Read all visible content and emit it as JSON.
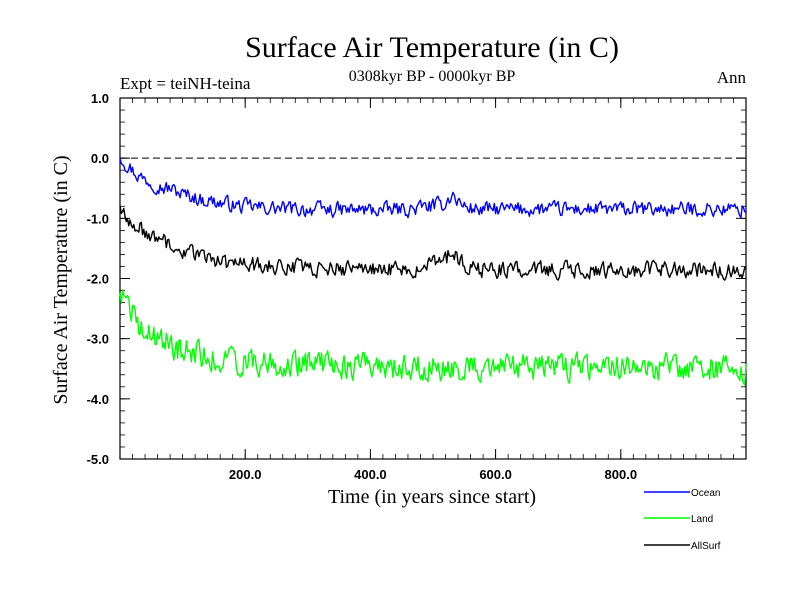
{
  "chart_data": {
    "type": "line",
    "title": "Surface Air Temperature (in C)",
    "subtitle": "0308kyr BP - 0000kyr BP",
    "experiment_label": "Expt = teiNH-teina",
    "season_label": "Ann",
    "xlabel": "Time (in years since start)",
    "ylabel": "Surface Air Temperature (in C)",
    "xlim": [
      0,
      1000
    ],
    "ylim": [
      -5.0,
      1.0
    ],
    "x_ticks": [
      200,
      400,
      600,
      800
    ],
    "x_tick_labels": [
      "200.0",
      "400.0",
      "600.0",
      "800.0"
    ],
    "y_ticks": [
      1.0,
      0.0,
      -1.0,
      -2.0,
      -3.0,
      -4.0,
      -5.0
    ],
    "y_tick_labels": [
      "1.0",
      "0.0",
      "-1.0",
      "-2.0",
      "-3.0",
      "-4.0",
      "-5.0"
    ],
    "reference_line": 0.0,
    "legend_position": "bottom-right",
    "series": [
      {
        "name": "Ocean",
        "color": "#0000ff",
        "x": [
          0,
          10,
          20,
          30,
          40,
          50,
          60,
          70,
          80,
          90,
          100,
          110,
          120,
          130,
          140,
          150,
          160,
          170,
          180,
          190,
          200,
          210,
          220,
          230,
          240,
          250,
          260,
          270,
          280,
          290,
          300,
          310,
          320,
          330,
          340,
          350,
          360,
          370,
          380,
          390,
          400,
          410,
          420,
          430,
          440,
          450,
          460,
          470,
          480,
          490,
          500,
          510,
          520,
          530,
          540,
          550,
          560,
          570,
          580,
          590,
          600,
          610,
          620,
          630,
          640,
          650,
          660,
          670,
          680,
          690,
          700,
          710,
          720,
          730,
          740,
          750,
          760,
          770,
          780,
          790,
          800,
          810,
          820,
          830,
          840,
          850,
          860,
          870,
          880,
          890,
          900,
          910,
          920,
          930,
          940,
          950,
          960,
          970,
          980,
          990,
          1000
        ],
        "values": [
          0.05,
          -0.1,
          -0.2,
          -0.3,
          -0.35,
          -0.4,
          -0.45,
          -0.5,
          -0.5,
          -0.55,
          -0.6,
          -0.62,
          -0.65,
          -0.7,
          -0.7,
          -0.72,
          -0.75,
          -0.75,
          -0.78,
          -0.8,
          -0.8,
          -0.8,
          -0.82,
          -0.82,
          -0.83,
          -0.83,
          -0.84,
          -0.84,
          -0.85,
          -0.85,
          -0.85,
          -0.85,
          -0.85,
          -0.86,
          -0.86,
          -0.86,
          -0.86,
          -0.86,
          -0.86,
          -0.86,
          -0.86,
          -0.86,
          -0.86,
          -0.86,
          -0.85,
          -0.85,
          -0.85,
          -0.85,
          -0.82,
          -0.8,
          -0.8,
          -0.78,
          -0.75,
          -0.6,
          -0.72,
          -0.8,
          -0.83,
          -0.85,
          -0.85,
          -0.85,
          -0.85,
          -0.85,
          -0.85,
          -0.85,
          -0.85,
          -0.85,
          -0.85,
          -0.85,
          -0.85,
          -0.85,
          -0.85,
          -0.85,
          -0.85,
          -0.85,
          -0.85,
          -0.85,
          -0.85,
          -0.85,
          -0.85,
          -0.85,
          -0.85,
          -0.85,
          -0.85,
          -0.85,
          -0.85,
          -0.85,
          -0.85,
          -0.85,
          -0.85,
          -0.85,
          -0.85,
          -0.85,
          -0.85,
          -0.85,
          -0.85,
          -0.85,
          -0.85,
          -0.85,
          -0.85,
          -0.85,
          -0.85
        ]
      },
      {
        "name": "Land",
        "color": "#00ff00",
        "x": [
          0,
          10,
          20,
          30,
          40,
          50,
          60,
          70,
          80,
          90,
          100,
          110,
          120,
          130,
          140,
          150,
          160,
          170,
          180,
          190,
          200,
          210,
          220,
          230,
          240,
          250,
          260,
          270,
          280,
          290,
          300,
          310,
          320,
          330,
          340,
          350,
          360,
          370,
          380,
          390,
          400,
          410,
          420,
          430,
          440,
          450,
          460,
          470,
          480,
          490,
          500,
          510,
          520,
          530,
          540,
          550,
          560,
          570,
          580,
          590,
          600,
          610,
          620,
          630,
          640,
          650,
          660,
          670,
          680,
          690,
          700,
          710,
          720,
          730,
          740,
          750,
          760,
          770,
          780,
          790,
          800,
          810,
          820,
          830,
          840,
          850,
          860,
          870,
          880,
          890,
          900,
          910,
          920,
          930,
          940,
          950,
          960,
          970,
          980,
          990,
          1000
        ],
        "values": [
          -2.2,
          -2.4,
          -2.6,
          -2.75,
          -2.85,
          -2.95,
          -3.0,
          -3.05,
          -3.1,
          -3.15,
          -3.2,
          -3.22,
          -3.25,
          -3.28,
          -3.3,
          -3.32,
          -3.33,
          -3.35,
          -3.36,
          -3.37,
          -3.38,
          -3.39,
          -3.4,
          -3.4,
          -3.4,
          -3.41,
          -3.41,
          -3.42,
          -3.42,
          -3.42,
          -3.43,
          -3.43,
          -3.43,
          -3.44,
          -3.44,
          -3.44,
          -3.45,
          -3.45,
          -3.45,
          -3.45,
          -3.45,
          -3.46,
          -3.46,
          -3.46,
          -3.46,
          -3.46,
          -3.47,
          -3.47,
          -3.47,
          -3.47,
          -3.48,
          -3.48,
          -3.48,
          -3.48,
          -3.48,
          -3.48,
          -3.48,
          -3.48,
          -3.48,
          -3.48,
          -3.48,
          -3.48,
          -3.48,
          -3.48,
          -3.48,
          -3.48,
          -3.48,
          -3.48,
          -3.48,
          -3.48,
          -3.48,
          -3.48,
          -3.48,
          -3.48,
          -3.48,
          -3.48,
          -3.48,
          -3.48,
          -3.48,
          -3.48,
          -3.48,
          -3.48,
          -3.48,
          -3.48,
          -3.48,
          -3.48,
          -3.48,
          -3.48,
          -3.48,
          -3.48,
          -3.48,
          -3.48,
          -3.48,
          -3.48,
          -3.48,
          -3.48,
          -3.48,
          -3.48,
          -3.48,
          -3.48,
          -3.48
        ]
      },
      {
        "name": "AllSurf",
        "color": "#000000",
        "x": [
          0,
          10,
          20,
          30,
          40,
          50,
          60,
          70,
          80,
          90,
          100,
          110,
          120,
          130,
          140,
          150,
          160,
          170,
          180,
          190,
          200,
          210,
          220,
          230,
          240,
          250,
          260,
          270,
          280,
          290,
          300,
          310,
          320,
          330,
          340,
          350,
          360,
          370,
          380,
          390,
          400,
          410,
          420,
          430,
          440,
          450,
          460,
          470,
          480,
          490,
          500,
          510,
          520,
          530,
          540,
          550,
          560,
          570,
          580,
          590,
          600,
          610,
          620,
          630,
          640,
          650,
          660,
          670,
          680,
          690,
          700,
          710,
          720,
          730,
          740,
          750,
          760,
          770,
          780,
          790,
          800,
          810,
          820,
          830,
          840,
          850,
          860,
          870,
          880,
          890,
          900,
          910,
          920,
          930,
          940,
          950,
          960,
          970,
          980,
          990,
          1000
        ],
        "values": [
          -0.8,
          -0.95,
          -1.05,
          -1.15,
          -1.22,
          -1.3,
          -1.35,
          -1.4,
          -1.45,
          -1.5,
          -1.55,
          -1.58,
          -1.62,
          -1.65,
          -1.68,
          -1.7,
          -1.72,
          -1.74,
          -1.75,
          -1.76,
          -1.77,
          -1.78,
          -1.78,
          -1.79,
          -1.8,
          -1.8,
          -1.8,
          -1.81,
          -1.81,
          -1.82,
          -1.82,
          -1.82,
          -1.83,
          -1.83,
          -1.83,
          -1.84,
          -1.84,
          -1.84,
          -1.84,
          -1.85,
          -1.85,
          -1.85,
          -1.85,
          -1.85,
          -1.85,
          -1.85,
          -1.84,
          -1.83,
          -1.8,
          -1.78,
          -1.76,
          -1.74,
          -1.72,
          -1.5,
          -1.68,
          -1.78,
          -1.82,
          -1.84,
          -1.85,
          -1.85,
          -1.85,
          -1.86,
          -1.86,
          -1.86,
          -1.86,
          -1.86,
          -1.86,
          -1.86,
          -1.86,
          -1.86,
          -1.86,
          -1.86,
          -1.86,
          -1.86,
          -1.86,
          -1.86,
          -1.86,
          -1.86,
          -1.86,
          -1.86,
          -1.86,
          -1.86,
          -1.86,
          -1.86,
          -1.86,
          -1.86,
          -1.86,
          -1.86,
          -1.86,
          -1.86,
          -1.86,
          -1.86,
          -1.86,
          -1.86,
          -1.86,
          -1.86,
          -1.86,
          -1.86,
          -1.86,
          -1.86,
          -1.86
        ]
      }
    ]
  }
}
